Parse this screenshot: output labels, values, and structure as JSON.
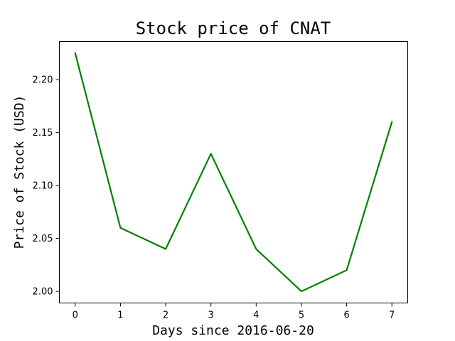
{
  "chart_data": {
    "type": "line",
    "title": "Stock price of CNAT",
    "xlabel": "Days since 2016-06-20",
    "ylabel": "Price of Stock (USD)",
    "x": [
      0,
      1,
      2,
      3,
      4,
      5,
      6,
      7
    ],
    "xticks": [
      "0",
      "1",
      "2",
      "3",
      "4",
      "5",
      "6",
      "7"
    ],
    "yticks": [
      "2.00",
      "2.05",
      "2.10",
      "2.15",
      "2.20"
    ],
    "series": [
      {
        "values": [
          2.225,
          2.06,
          2.04,
          2.13,
          2.04,
          2.0,
          2.02,
          2.16
        ],
        "color": "#008000"
      }
    ],
    "xlim": [
      -0.35,
      7.35
    ],
    "ylim": [
      1.989,
      2.236
    ],
    "grid": false,
    "legend": false
  }
}
